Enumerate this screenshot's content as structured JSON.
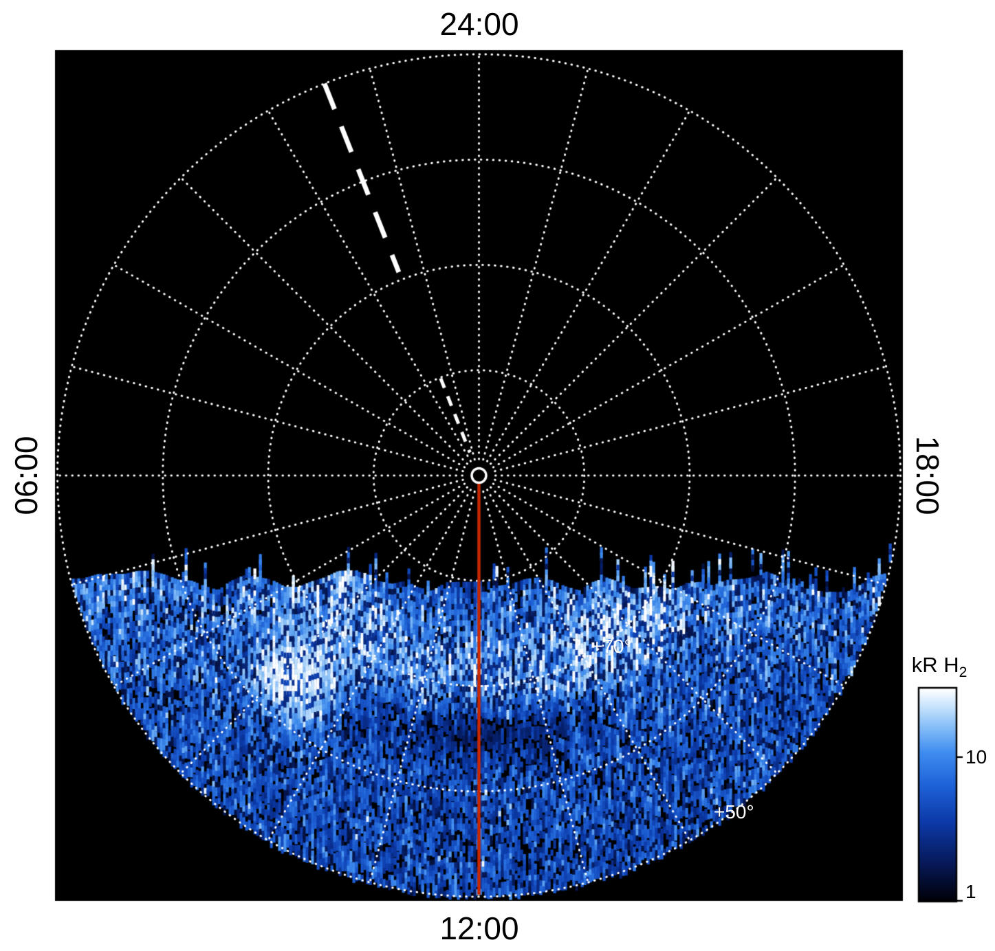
{
  "figure": {
    "background": "#ffffff",
    "plot_background": "#000000",
    "grid_color": "#ffffff"
  },
  "axis_labels": {
    "top": "24:00",
    "bottom": "12:00",
    "left": "06:00",
    "right": "18:00"
  },
  "ring_labels": {
    "lat70": "+70°",
    "lat50": "+50°"
  },
  "colorbar": {
    "title_main": "kR H",
    "title_sub": "2",
    "tick_top": "10",
    "tick_bottom": "1"
  },
  "chart_data": {
    "type": "heatmap",
    "projection": "polar",
    "title": "",
    "angular_axis": {
      "unit": "local time (hours)",
      "labels": [
        {
          "value": "24:00",
          "position": "top"
        },
        {
          "value": "06:00",
          "position": "left"
        },
        {
          "value": "12:00",
          "position": "bottom"
        },
        {
          "value": "18:00",
          "position": "right"
        }
      ],
      "spoke_interval_hours": 1,
      "spoke_interval_deg": 15
    },
    "radial_axis": {
      "unit": "latitude (deg)",
      "center_value": 90,
      "edge_value": 50,
      "ring_interval_deg": 10,
      "labeled_rings": [
        70,
        50
      ]
    },
    "colorbar": {
      "label": "kR H2",
      "scale": "log",
      "range": [
        1,
        30
      ],
      "ticks": [
        10,
        1
      ],
      "colormap_stops": [
        {
          "t": 0.0,
          "color": "#000006"
        },
        {
          "t": 0.18,
          "color": "#06195a"
        },
        {
          "t": 0.38,
          "color": "#0c3bab"
        },
        {
          "t": 0.55,
          "color": "#1f63d9"
        },
        {
          "t": 0.7,
          "color": "#3f8df0"
        },
        {
          "t": 0.82,
          "color": "#86bef8"
        },
        {
          "t": 0.92,
          "color": "#cae5fd"
        },
        {
          "t": 1.0,
          "color": "#ffffff"
        }
      ]
    },
    "annotations": {
      "red_meridian": {
        "local_time": "12:00",
        "color": "#c82800"
      },
      "dashed_guide_line": {
        "local_time": "01:26",
        "color": "#ffffff",
        "style": "dashed"
      },
      "pole_marker": {
        "latitude": 90,
        "style": "white-circle"
      }
    },
    "emission": {
      "description": "Speckled H2 auroral emission filling the sunlit sector between 06:00 and 18:00 local time (lower half of projection), with vertical streaks hanging from the terminator line, a bright oval arc near +71 latitude, a dark arc near +65 around noon, and a bright white patch near 09:12 LT",
      "terminator_screen_offset": 157,
      "bright_oval_latitude": 71.3,
      "dark_arc": {
        "latitude": 65.5,
        "local_time_center": 12.1
      },
      "bright_patch_1": {
        "local_time": 9.2,
        "latitude": 64.3,
        "peak_kR": 30
      },
      "bright_patch_2": {
        "local_time": 14.6,
        "latitude": 68.3
      },
      "seed": 1234567
    }
  }
}
